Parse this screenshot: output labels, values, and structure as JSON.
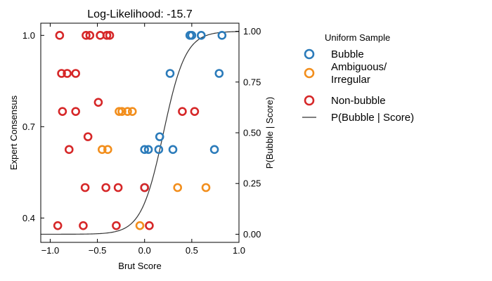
{
  "chart_data": {
    "type": "scatter",
    "title": "Log-Likelihood: -15.7",
    "xlabel": "Brut Score",
    "ylabel": "Expert Consensus",
    "y2label": "P(Bubble | Score)",
    "xlim": [
      -1.1,
      1.0
    ],
    "ylim": [
      0.32,
      1.04
    ],
    "y2lim": [
      -0.04,
      1.04
    ],
    "xticks": [
      -1.0,
      -0.5,
      0.0,
      0.5,
      1.0
    ],
    "xtick_labels": [
      "−1.0",
      "−0.5",
      "0.0",
      "0.5",
      "1.0"
    ],
    "yticks": [
      0.4,
      0.7,
      1.0
    ],
    "ytick_labels": [
      "0.4",
      "0.7",
      "1.0"
    ],
    "y2ticks": [
      0.0,
      0.25,
      0.5,
      0.75,
      1.0
    ],
    "y2tick_labels": [
      "0.00",
      "0.25",
      "0.50",
      "0.75",
      "1.00"
    ],
    "legend": {
      "title": "Uniform Sample",
      "entries": [
        {
          "key": "bubble",
          "label_lines": [
            "Bubble"
          ]
        },
        {
          "key": "ambiguous",
          "label_lines": [
            "Ambiguous/",
            "Irregular"
          ]
        },
        {
          "key": "nonbubble",
          "label_lines": [
            "Non-bubble"
          ]
        },
        {
          "key": "curve",
          "label_lines": [
            "P(Bubble | Score)"
          ]
        }
      ]
    },
    "colors": {
      "bubble": "#2b7bba",
      "ambiguous": "#f28e1c",
      "nonbubble": "#d62728",
      "curve": "#333333",
      "axis": "#000000"
    },
    "series": [
      {
        "key": "bubble",
        "name": "Bubble",
        "points": [
          [
            0.48,
            1.0
          ],
          [
            0.5,
            1.0
          ],
          [
            0.6,
            1.0
          ],
          [
            0.82,
            1.0
          ],
          [
            0.27,
            0.875
          ],
          [
            0.79,
            0.875
          ],
          [
            0.16,
            0.667
          ],
          [
            0.0,
            0.625
          ],
          [
            0.04,
            0.625
          ],
          [
            0.15,
            0.625
          ],
          [
            0.3,
            0.625
          ],
          [
            0.74,
            0.625
          ],
          [
            0.0,
            0.5
          ]
        ]
      },
      {
        "key": "ambiguous",
        "name": "Ambiguous/Irregular",
        "points": [
          [
            -0.27,
            0.75
          ],
          [
            -0.24,
            0.75
          ],
          [
            -0.18,
            0.75
          ],
          [
            -0.13,
            0.75
          ],
          [
            -0.45,
            0.625
          ],
          [
            -0.39,
            0.625
          ],
          [
            0.35,
            0.5
          ],
          [
            0.65,
            0.5
          ],
          [
            -0.05,
            0.375
          ]
        ]
      },
      {
        "key": "nonbubble",
        "name": "Non-bubble",
        "points": [
          [
            -0.9,
            1.0
          ],
          [
            -0.62,
            1.0
          ],
          [
            -0.58,
            1.0
          ],
          [
            -0.47,
            1.0
          ],
          [
            -0.4,
            1.0
          ],
          [
            -0.37,
            1.0
          ],
          [
            -0.88,
            0.875
          ],
          [
            -0.82,
            0.875
          ],
          [
            -0.73,
            0.875
          ],
          [
            -0.87,
            0.75
          ],
          [
            -0.73,
            0.75
          ],
          [
            -0.49,
            0.78
          ],
          [
            0.4,
            0.75
          ],
          [
            0.53,
            0.75
          ],
          [
            -0.8,
            0.625
          ],
          [
            -0.6,
            0.667
          ],
          [
            -0.63,
            0.5
          ],
          [
            -0.41,
            0.5
          ],
          [
            -0.28,
            0.5
          ],
          [
            0.0,
            0.5
          ],
          [
            -0.92,
            0.375
          ],
          [
            -0.65,
            0.375
          ],
          [
            -0.3,
            0.375
          ],
          [
            0.05,
            0.375
          ]
        ]
      }
    ],
    "curve": {
      "name": "P(Bubble | Score)",
      "function": "logistic",
      "center": 0.2,
      "slope": 8.5,
      "x_range": [
        -1.1,
        1.0
      ]
    }
  }
}
